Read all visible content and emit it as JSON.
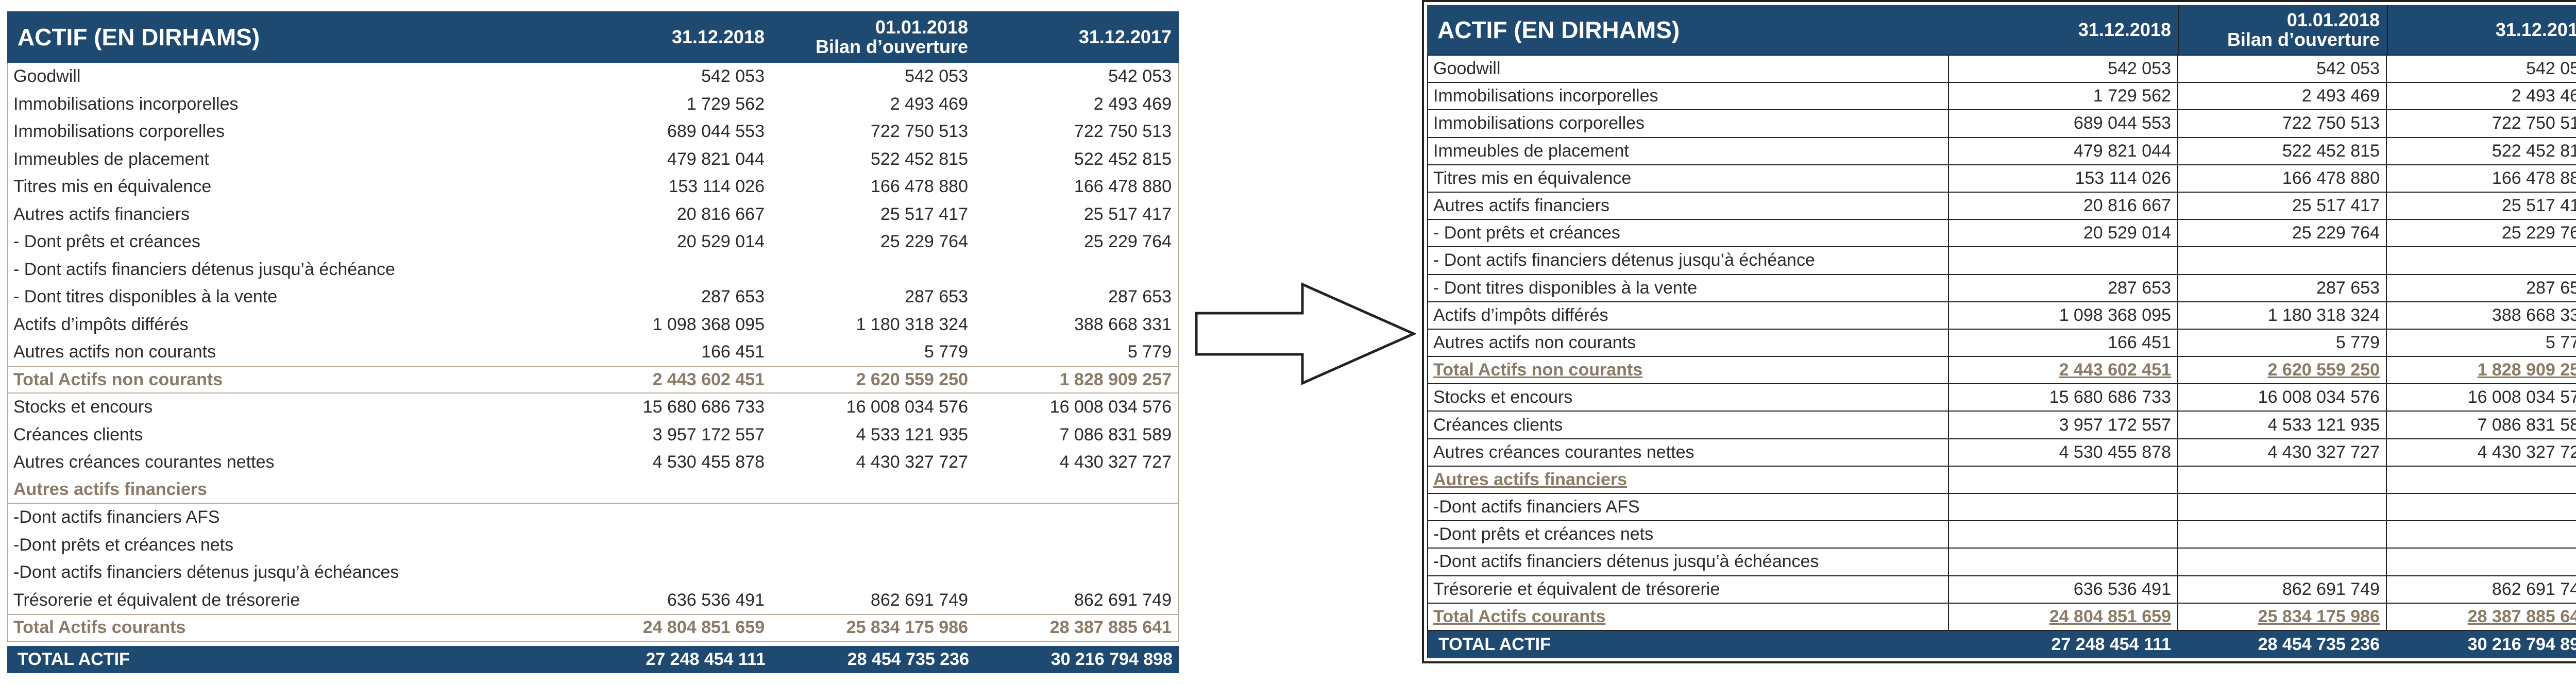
{
  "header": {
    "title": "ACTIF (EN DIRHAMS)",
    "col1": "31.12.2018",
    "col2_line1": "01.01.2018",
    "col2_line2": "Bilan d’ouverture",
    "col3": "31.12.2017"
  },
  "rows": [
    {
      "label": "Goodwill",
      "v1": "542 053",
      "v2": "542 053",
      "v3": "542 053"
    },
    {
      "label": "Immobilisations incorporelles",
      "v1": "1 729 562",
      "v2": "2 493 469",
      "v3": "2 493 469"
    },
    {
      "label": "Immobilisations corporelles",
      "v1": "689 044 553",
      "v2": "722 750 513",
      "v3": "722 750 513"
    },
    {
      "label": "Immeubles de placement",
      "v1": "479 821 044",
      "v2": "522 452 815",
      "v3": "522 452 815"
    },
    {
      "label": "Titres mis en équivalence",
      "v1": "153 114 026",
      "v2": "166 478 880",
      "v3": "166 478 880"
    },
    {
      "label": "Autres actifs financiers",
      "v1": "20 816 667",
      "v2": "25 517 417",
      "v3": "25 517 417"
    },
    {
      "label": "- Dont prêts et créances",
      "v1": "20 529 014",
      "v2": "25 229 764",
      "v3": "25 229 764"
    },
    {
      "label": "- Dont actifs financiers détenus jusqu’à échéance",
      "v1": "",
      "v2": "",
      "v3": ""
    },
    {
      "label": "- Dont titres disponibles à la vente",
      "v1": "287 653",
      "v2": "287 653",
      "v3": "287 653"
    },
    {
      "label": "Actifs d’impôts différés",
      "v1": "1 098 368 095",
      "v2": "1 180 318 324",
      "v3": "388 668 331"
    },
    {
      "label": "Autres actifs non courants",
      "v1": "166 451",
      "v2": "5 779",
      "v3": "5 779"
    },
    {
      "label": "Total Actifs non courants",
      "v1": "2 443 602 451",
      "v2": "2 620 559 250",
      "v3": "1 828 909 257",
      "kind": "total"
    },
    {
      "label": "Stocks et encours",
      "v1": "15 680 686 733",
      "v2": "16 008 034 576",
      "v3": "16 008 034 576"
    },
    {
      "label": "Créances clients",
      "v1": "3 957 172 557",
      "v2": "4 533 121 935",
      "v3": "7 086 831 589"
    },
    {
      "label": "Autres créances courantes nettes",
      "v1": "4 530 455 878",
      "v2": "4 430 327 727",
      "v3": "4 430 327 727"
    },
    {
      "label": "Autres actifs financiers",
      "v1": "",
      "v2": "",
      "v3": "",
      "kind": "section"
    },
    {
      "label": "-Dont actifs financiers AFS",
      "v1": "",
      "v2": "",
      "v3": ""
    },
    {
      "label": "-Dont prêts et créances nets",
      "v1": "",
      "v2": "",
      "v3": ""
    },
    {
      "label": "-Dont actifs financiers détenus jusqu’à échéances",
      "v1": "",
      "v2": "",
      "v3": ""
    },
    {
      "label": "Trésorerie et équivalent de trésorerie",
      "v1": "636 536 491",
      "v2": "862 691 749",
      "v3": "862 691 749"
    },
    {
      "label": "Total Actifs courants",
      "v1": "24 804 851 659",
      "v2": "25 834 175 986",
      "v3": "28 387 885 641",
      "kind": "total"
    },
    {
      "label": "TOTAL ACTIF",
      "v1": "27 248 454 111",
      "v2": "28 454 735 236",
      "v3": "30 216 794 898",
      "kind": "grand"
    }
  ],
  "colors": {
    "header_bg": "#1e4a72",
    "total_text": "#8a7a66",
    "arrow": "arrow-right-icon"
  }
}
